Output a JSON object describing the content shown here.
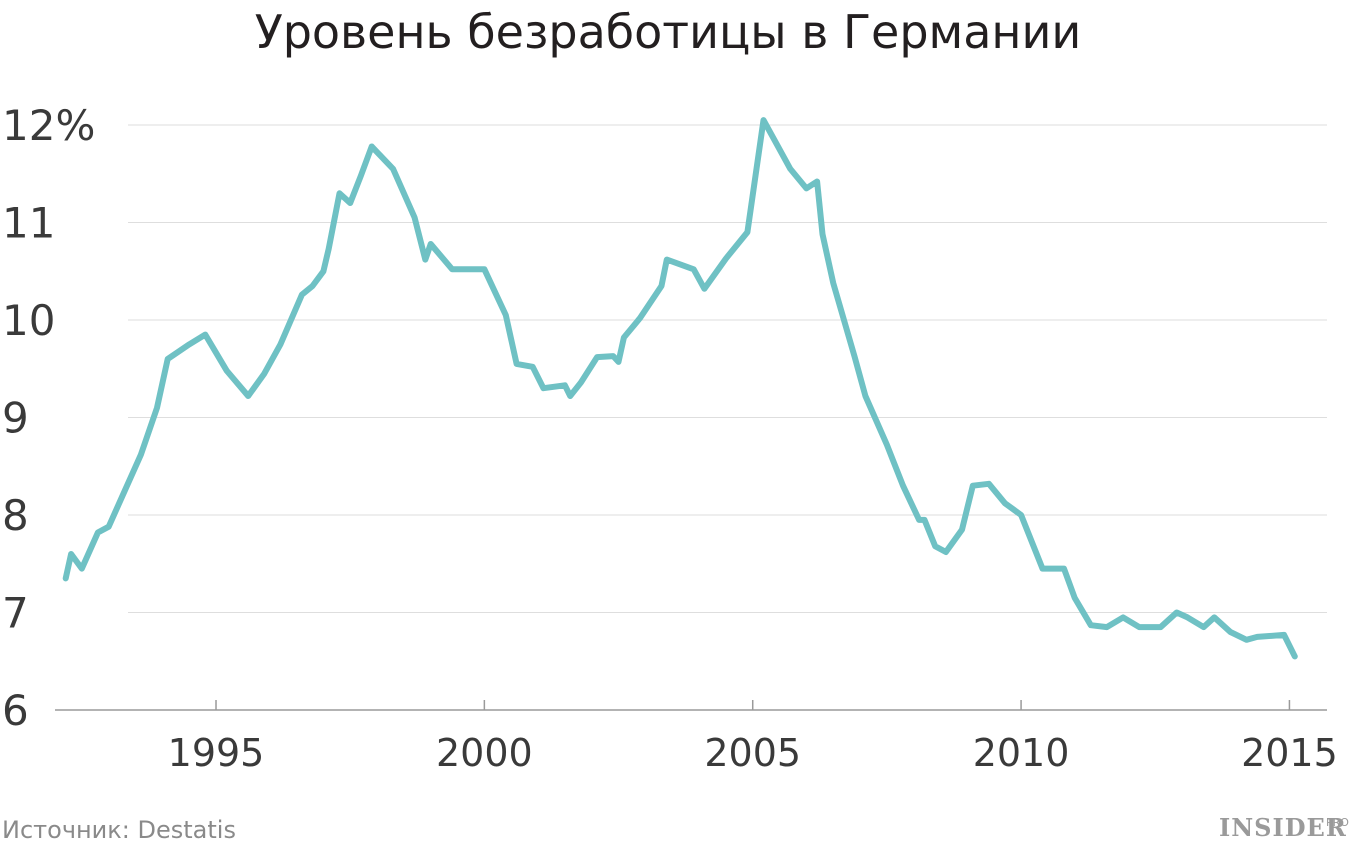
{
  "chart_data": {
    "type": "line",
    "title": "Уровень безработицы в Германии",
    "xlabel": "",
    "ylabel": "",
    "xlim": [
      1992.0,
      2015.7
    ],
    "ylim": [
      6,
      12
    ],
    "x_ticks": [
      {
        "value": 1995,
        "label": "1995"
      },
      {
        "value": 2000,
        "label": "2000"
      },
      {
        "value": 2005,
        "label": "2005"
      },
      {
        "value": 2010,
        "label": "2010"
      },
      {
        "value": 2015,
        "label": "2015"
      }
    ],
    "y_ticks": [
      {
        "value": 12,
        "label": "12%"
      },
      {
        "value": 11,
        "label": "11"
      },
      {
        "value": 10,
        "label": "10"
      },
      {
        "value": 9,
        "label": "9"
      },
      {
        "value": 8,
        "label": "8"
      },
      {
        "value": 7,
        "label": "7"
      },
      {
        "value": 6,
        "label": "6"
      }
    ],
    "grid": true,
    "series": [
      {
        "color": "#6fc1c4",
        "x": [
          1992.2,
          1992.3,
          1992.5,
          1992.8,
          1993.0,
          1993.3,
          1993.6,
          1993.9,
          1994.1,
          1994.5,
          1994.8,
          1995.2,
          1995.6,
          1995.9,
          1996.2,
          1996.6,
          1996.8,
          1997.0,
          1997.1,
          1997.3,
          1997.5,
          1997.7,
          1997.9,
          1998.3,
          1998.7,
          1998.9,
          1999.0,
          1999.4,
          1999.8,
          2000.0,
          2000.4,
          2000.6,
          2000.9,
          2001.1,
          2001.5,
          2001.6,
          2001.8,
          2002.1,
          2002.4,
          2002.5,
          2002.6,
          2002.9,
          2003.3,
          2003.4,
          2003.9,
          2004.1,
          2004.5,
          2004.9,
          2005.2,
          2005.4,
          2005.7,
          2006.0,
          2006.2,
          2006.3,
          2006.5,
          2006.9,
          2007.1,
          2007.5,
          2007.8,
          2008.1,
          2008.2,
          2008.4,
          2008.6,
          2008.9,
          2009.1,
          2009.4,
          2009.7,
          2010.0,
          2010.4,
          2010.8,
          2011.0,
          2011.3,
          2011.6,
          2011.9,
          2012.2,
          2012.4,
          2012.6,
          2012.9,
          2013.1,
          2013.4,
          2013.6,
          2013.9,
          2014.2,
          2014.4,
          2014.9,
          2015.1
        ],
        "y": [
          7.35,
          7.6,
          7.45,
          7.82,
          7.88,
          8.25,
          8.62,
          9.1,
          9.6,
          9.75,
          9.85,
          9.48,
          9.22,
          9.45,
          9.75,
          10.26,
          10.35,
          10.5,
          10.73,
          11.3,
          11.2,
          11.48,
          11.78,
          11.55,
          11.05,
          10.62,
          10.78,
          10.52,
          10.52,
          10.52,
          10.05,
          9.55,
          9.52,
          9.3,
          9.33,
          9.22,
          9.36,
          9.62,
          9.63,
          9.57,
          9.82,
          10.02,
          10.35,
          10.62,
          10.52,
          10.32,
          10.63,
          10.9,
          12.05,
          11.85,
          11.55,
          11.35,
          11.42,
          10.88,
          10.38,
          9.62,
          9.22,
          8.72,
          8.3,
          7.95,
          7.95,
          7.68,
          7.62,
          7.85,
          8.3,
          8.32,
          8.12,
          8.0,
          7.45,
          7.45,
          7.15,
          6.87,
          6.85,
          6.95,
          6.85,
          6.85,
          6.85,
          7.0,
          6.95,
          6.85,
          6.95,
          6.8,
          6.72,
          6.75,
          6.77,
          6.55
        ]
      }
    ]
  },
  "source": "Источник: Destatis",
  "brand": {
    "name": "INSIDER",
    "sup": "PRO"
  }
}
